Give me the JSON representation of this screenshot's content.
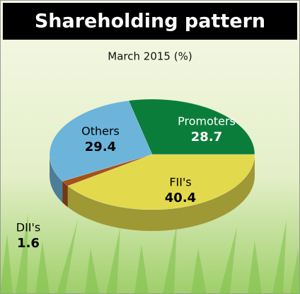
{
  "chart_data": {
    "type": "pie",
    "title": "Shareholding pattern",
    "subtitle": "March 2015 (%)",
    "categories": [
      "Promoters",
      "FII's",
      "DII's",
      "Others"
    ],
    "values": [
      28.7,
      40.4,
      1.6,
      29.4
    ],
    "colors": [
      "#0b7d3b",
      "#e2d94c",
      "#a3521c",
      "#6cb4da"
    ]
  }
}
